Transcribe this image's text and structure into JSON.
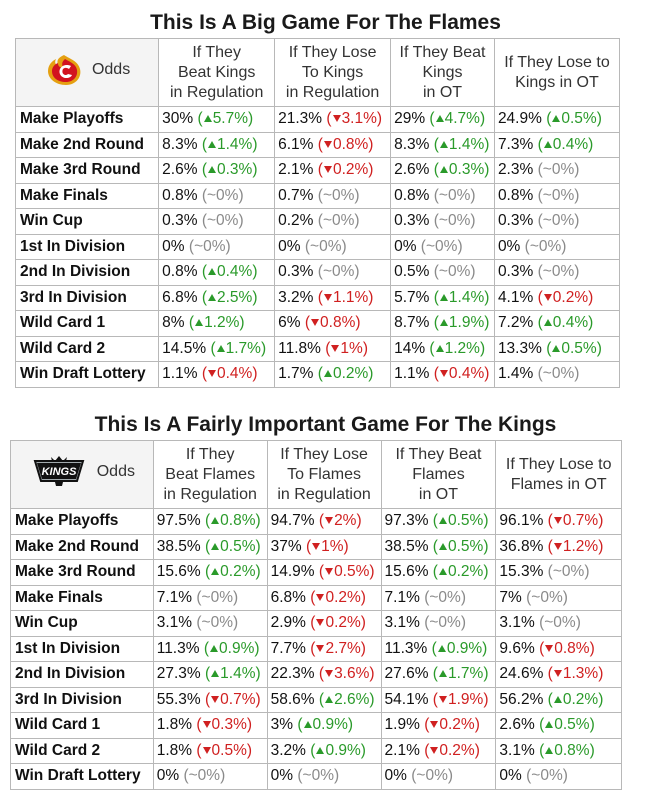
{
  "tables": [
    {
      "title": "This Is A Big Game For The Flames",
      "logo": "flames-logo-icon",
      "odds_label": "Odds",
      "columns": [
        [
          "If They",
          "Beat Kings",
          "in Regulation"
        ],
        [
          "If They Lose",
          "To Kings",
          "in Regulation"
        ],
        [
          "If They Beat",
          "Kings",
          "in OT"
        ],
        [
          "If They Lose to",
          "Kings in OT"
        ]
      ],
      "rows": [
        {
          "label": "Make Playoffs",
          "cells": [
            {
              "v": "30%",
              "d": "5.7%",
              "t": "up"
            },
            {
              "v": "21.3%",
              "d": "3.1%",
              "t": "down"
            },
            {
              "v": "29%",
              "d": "4.7%",
              "t": "up"
            },
            {
              "v": "24.9%",
              "d": "0.5%",
              "t": "up"
            }
          ]
        },
        {
          "label": "Make 2nd Round",
          "cells": [
            {
              "v": "8.3%",
              "d": "1.4%",
              "t": "up"
            },
            {
              "v": "6.1%",
              "d": "0.8%",
              "t": "down"
            },
            {
              "v": "8.3%",
              "d": "1.4%",
              "t": "up"
            },
            {
              "v": "7.3%",
              "d": "0.4%",
              "t": "up"
            }
          ]
        },
        {
          "label": "Make 3rd Round",
          "cells": [
            {
              "v": "2.6%",
              "d": "0.3%",
              "t": "up"
            },
            {
              "v": "2.1%",
              "d": "0.2%",
              "t": "down"
            },
            {
              "v": "2.6%",
              "d": "0.3%",
              "t": "up"
            },
            {
              "v": "2.3%",
              "d": "~0%",
              "t": "flat"
            }
          ]
        },
        {
          "label": "Make Finals",
          "cells": [
            {
              "v": "0.8%",
              "d": "~0%",
              "t": "flat"
            },
            {
              "v": "0.7%",
              "d": "~0%",
              "t": "flat"
            },
            {
              "v": "0.8%",
              "d": "~0%",
              "t": "flat"
            },
            {
              "v": "0.8%",
              "d": "~0%",
              "t": "flat"
            }
          ]
        },
        {
          "label": "Win Cup",
          "cells": [
            {
              "v": "0.3%",
              "d": "~0%",
              "t": "flat"
            },
            {
              "v": "0.2%",
              "d": "~0%",
              "t": "flat"
            },
            {
              "v": "0.3%",
              "d": "~0%",
              "t": "flat"
            },
            {
              "v": "0.3%",
              "d": "~0%",
              "t": "flat"
            }
          ]
        },
        {
          "label": "1st In Division",
          "cells": [
            {
              "v": "0%",
              "d": "~0%",
              "t": "flat"
            },
            {
              "v": "0%",
              "d": "~0%",
              "t": "flat"
            },
            {
              "v": "0%",
              "d": "~0%",
              "t": "flat"
            },
            {
              "v": "0%",
              "d": "~0%",
              "t": "flat"
            }
          ]
        },
        {
          "label": "2nd In Division",
          "cells": [
            {
              "v": "0.8%",
              "d": "0.4%",
              "t": "up"
            },
            {
              "v": "0.3%",
              "d": "~0%",
              "t": "flat"
            },
            {
              "v": "0.5%",
              "d": "~0%",
              "t": "flat"
            },
            {
              "v": "0.3%",
              "d": "~0%",
              "t": "flat"
            }
          ]
        },
        {
          "label": "3rd In Division",
          "cells": [
            {
              "v": "6.8%",
              "d": "2.5%",
              "t": "up"
            },
            {
              "v": "3.2%",
              "d": "1.1%",
              "t": "down"
            },
            {
              "v": "5.7%",
              "d": "1.4%",
              "t": "up"
            },
            {
              "v": "4.1%",
              "d": "0.2%",
              "t": "down"
            }
          ]
        },
        {
          "label": "Wild Card 1",
          "cells": [
            {
              "v": "8%",
              "d": "1.2%",
              "t": "up"
            },
            {
              "v": "6%",
              "d": "0.8%",
              "t": "down"
            },
            {
              "v": "8.7%",
              "d": "1.9%",
              "t": "up"
            },
            {
              "v": "7.2%",
              "d": "0.4%",
              "t": "up"
            }
          ]
        },
        {
          "label": "Wild Card 2",
          "cells": [
            {
              "v": "14.5%",
              "d": "1.7%",
              "t": "up"
            },
            {
              "v": "11.8%",
              "d": "1%",
              "t": "down"
            },
            {
              "v": "14%",
              "d": "1.2%",
              "t": "up"
            },
            {
              "v": "13.3%",
              "d": "0.5%",
              "t": "up"
            }
          ]
        },
        {
          "label": "Win Draft Lottery",
          "cells": [
            {
              "v": "1.1%",
              "d": "0.4%",
              "t": "down"
            },
            {
              "v": "1.7%",
              "d": "0.2%",
              "t": "up"
            },
            {
              "v": "1.1%",
              "d": "0.4%",
              "t": "down"
            },
            {
              "v": "1.4%",
              "d": "~0%",
              "t": "flat"
            }
          ]
        }
      ]
    },
    {
      "title": "This Is A Fairly Important Game For The Kings",
      "logo": "kings-logo-icon",
      "logo_text": "KINGS",
      "odds_label": "Odds",
      "columns": [
        [
          "If They",
          "Beat Flames",
          "in Regulation"
        ],
        [
          "If They Lose",
          "To Flames",
          "in Regulation"
        ],
        [
          "If They Beat",
          "Flames",
          "in OT"
        ],
        [
          "If They Lose to",
          "Flames in OT"
        ]
      ],
      "rows": [
        {
          "label": "Make Playoffs",
          "cells": [
            {
              "v": "97.5%",
              "d": "0.8%",
              "t": "up"
            },
            {
              "v": "94.7%",
              "d": "2%",
              "t": "down"
            },
            {
              "v": "97.3%",
              "d": "0.5%",
              "t": "up"
            },
            {
              "v": "96.1%",
              "d": "0.7%",
              "t": "down"
            }
          ]
        },
        {
          "label": "Make 2nd Round",
          "cells": [
            {
              "v": "38.5%",
              "d": "0.5%",
              "t": "up"
            },
            {
              "v": "37%",
              "d": "1%",
              "t": "down"
            },
            {
              "v": "38.5%",
              "d": "0.5%",
              "t": "up"
            },
            {
              "v": "36.8%",
              "d": "1.2%",
              "t": "down"
            }
          ]
        },
        {
          "label": "Make 3rd Round",
          "cells": [
            {
              "v": "15.6%",
              "d": "0.2%",
              "t": "up"
            },
            {
              "v": "14.9%",
              "d": "0.5%",
              "t": "down"
            },
            {
              "v": "15.6%",
              "d": "0.2%",
              "t": "up"
            },
            {
              "v": "15.3%",
              "d": "~0%",
              "t": "flat"
            }
          ]
        },
        {
          "label": "Make Finals",
          "cells": [
            {
              "v": "7.1%",
              "d": "~0%",
              "t": "flat"
            },
            {
              "v": "6.8%",
              "d": "0.2%",
              "t": "down"
            },
            {
              "v": "7.1%",
              "d": "~0%",
              "t": "flat"
            },
            {
              "v": "7%",
              "d": "~0%",
              "t": "flat"
            }
          ]
        },
        {
          "label": "Win Cup",
          "cells": [
            {
              "v": "3.1%",
              "d": "~0%",
              "t": "flat"
            },
            {
              "v": "2.9%",
              "d": "0.2%",
              "t": "down"
            },
            {
              "v": "3.1%",
              "d": "~0%",
              "t": "flat"
            },
            {
              "v": "3.1%",
              "d": "~0%",
              "t": "flat"
            }
          ]
        },
        {
          "label": "1st In Division",
          "cells": [
            {
              "v": "11.3%",
              "d": "0.9%",
              "t": "up"
            },
            {
              "v": "7.7%",
              "d": "2.7%",
              "t": "down"
            },
            {
              "v": "11.3%",
              "d": "0.9%",
              "t": "up"
            },
            {
              "v": "9.6%",
              "d": "0.8%",
              "t": "down"
            }
          ]
        },
        {
          "label": "2nd In Division",
          "cells": [
            {
              "v": "27.3%",
              "d": "1.4%",
              "t": "up"
            },
            {
              "v": "22.3%",
              "d": "3.6%",
              "t": "down"
            },
            {
              "v": "27.6%",
              "d": "1.7%",
              "t": "up"
            },
            {
              "v": "24.6%",
              "d": "1.3%",
              "t": "down"
            }
          ]
        },
        {
          "label": "3rd In Division",
          "cells": [
            {
              "v": "55.3%",
              "d": "0.7%",
              "t": "down"
            },
            {
              "v": "58.6%",
              "d": "2.6%",
              "t": "up"
            },
            {
              "v": "54.1%",
              "d": "1.9%",
              "t": "down"
            },
            {
              "v": "56.2%",
              "d": "0.2%",
              "t": "up"
            }
          ]
        },
        {
          "label": "Wild Card 1",
          "cells": [
            {
              "v": "1.8%",
              "d": "0.3%",
              "t": "down"
            },
            {
              "v": "3%",
              "d": "0.9%",
              "t": "up"
            },
            {
              "v": "1.9%",
              "d": "0.2%",
              "t": "down"
            },
            {
              "v": "2.6%",
              "d": "0.5%",
              "t": "up"
            }
          ]
        },
        {
          "label": "Wild Card 2",
          "cells": [
            {
              "v": "1.8%",
              "d": "0.5%",
              "t": "down"
            },
            {
              "v": "3.2%",
              "d": "0.9%",
              "t": "up"
            },
            {
              "v": "2.1%",
              "d": "0.2%",
              "t": "down"
            },
            {
              "v": "3.1%",
              "d": "0.8%",
              "t": "up"
            }
          ]
        },
        {
          "label": "Win Draft Lottery",
          "cells": [
            {
              "v": "0%",
              "d": "~0%",
              "t": "flat"
            },
            {
              "v": "0%",
              "d": "~0%",
              "t": "flat"
            },
            {
              "v": "0%",
              "d": "~0%",
              "t": "flat"
            },
            {
              "v": "0%",
              "d": "~0%",
              "t": "flat"
            }
          ]
        }
      ]
    }
  ]
}
